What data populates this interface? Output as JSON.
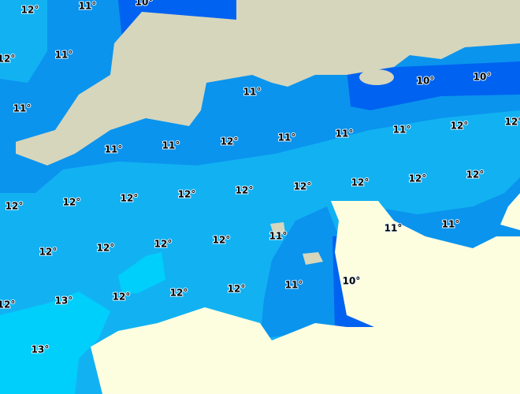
{
  "labels": [
    "12°",
    "11°",
    "10°",
    "12°",
    "11°",
    "11°",
    "11°",
    "10°",
    "10°",
    "11°",
    "11°",
    "12°",
    "11°",
    "11°",
    "11°",
    "12°",
    "12°",
    "12°",
    "12°",
    "12°",
    "12°",
    "12°",
    "12°",
    "12°",
    "12°",
    "12°",
    "11°",
    "11°",
    "11°",
    "12°",
    "12°",
    "12°",
    "12°",
    "11°",
    "10°",
    "12°",
    "12°",
    "12°",
    "13°",
    "12°",
    "13°"
  ]
}
